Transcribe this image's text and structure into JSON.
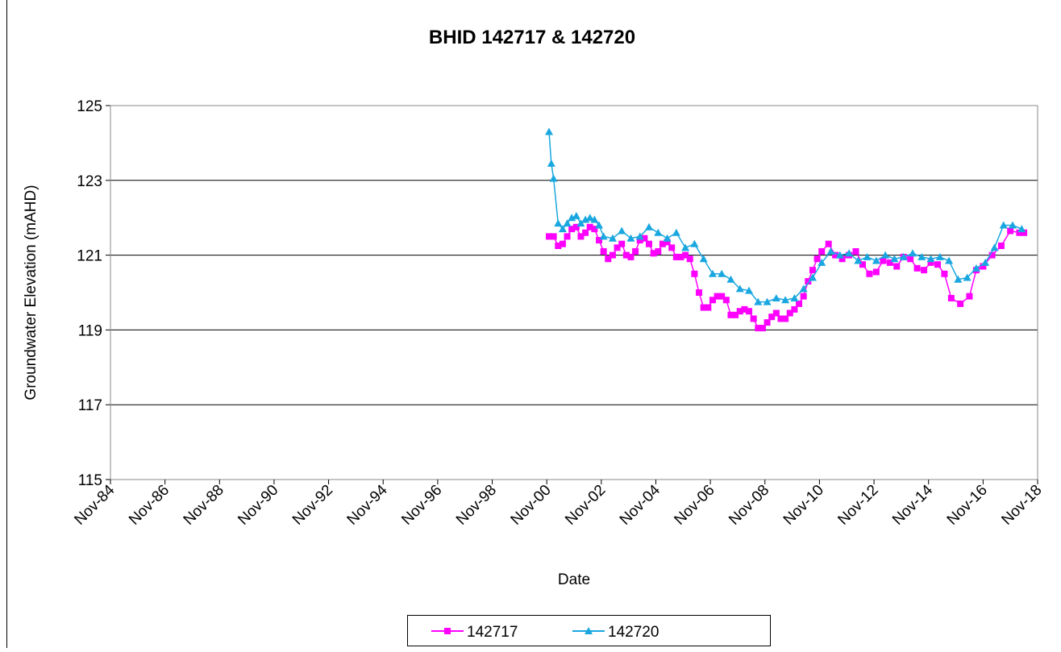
{
  "chart_data": {
    "type": "line",
    "title": "BHID 142717 & 142720",
    "xlabel": "Date",
    "ylabel": "Groundwater Elevation (mAHD)",
    "xlim": [
      "1984-11",
      "2018-11"
    ],
    "xticks": [
      {
        "value": "1984-11",
        "label": "Nov-84"
      },
      {
        "value": "1986-11",
        "label": "Nov-86"
      },
      {
        "value": "1988-11",
        "label": "Nov-88"
      },
      {
        "value": "1990-11",
        "label": "Nov-90"
      },
      {
        "value": "1992-11",
        "label": "Nov-92"
      },
      {
        "value": "1994-11",
        "label": "Nov-94"
      },
      {
        "value": "1996-11",
        "label": "Nov-96"
      },
      {
        "value": "1998-11",
        "label": "Nov-98"
      },
      {
        "value": "2000-11",
        "label": "Nov-00"
      },
      {
        "value": "2002-11",
        "label": "Nov-02"
      },
      {
        "value": "2004-11",
        "label": "Nov-04"
      },
      {
        "value": "2006-11",
        "label": "Nov-06"
      },
      {
        "value": "2008-11",
        "label": "Nov-08"
      },
      {
        "value": "2010-11",
        "label": "Nov-10"
      },
      {
        "value": "2012-11",
        "label": "Nov-12"
      },
      {
        "value": "2014-11",
        "label": "Nov-14"
      },
      {
        "value": "2016-11",
        "label": "Nov-16"
      },
      {
        "value": "2018-11",
        "label": "Nov-18"
      }
    ],
    "ylim": [
      115,
      125
    ],
    "yticks": [
      115,
      117,
      119,
      121,
      123,
      125
    ],
    "grid": true,
    "legend": "bottom",
    "series": [
      {
        "name": "142717",
        "color": "#ff00ff",
        "marker": "square",
        "x": [
          "2000-12",
          "2001-02",
          "2001-04",
          "2001-06",
          "2001-08",
          "2001-10",
          "2001-12",
          "2002-02",
          "2002-04",
          "2002-06",
          "2002-08",
          "2002-10",
          "2002-12",
          "2003-02",
          "2003-04",
          "2003-06",
          "2003-08",
          "2003-10",
          "2003-12",
          "2004-02",
          "2004-04",
          "2004-06",
          "2004-08",
          "2004-10",
          "2004-12",
          "2005-02",
          "2005-04",
          "2005-06",
          "2005-08",
          "2005-10",
          "2005-12",
          "2006-02",
          "2006-04",
          "2006-06",
          "2006-08",
          "2006-10",
          "2006-12",
          "2007-02",
          "2007-04",
          "2007-06",
          "2007-08",
          "2007-10",
          "2007-12",
          "2008-02",
          "2008-04",
          "2008-06",
          "2008-08",
          "2008-10",
          "2008-12",
          "2009-02",
          "2009-04",
          "2009-06",
          "2009-08",
          "2009-10",
          "2009-12",
          "2010-02",
          "2010-04",
          "2010-06",
          "2010-08",
          "2010-10",
          "2010-12",
          "2011-03",
          "2011-06",
          "2011-09",
          "2011-12",
          "2012-03",
          "2012-06",
          "2012-09",
          "2012-12",
          "2013-03",
          "2013-06",
          "2013-09",
          "2013-12",
          "2014-03",
          "2014-06",
          "2014-09",
          "2014-12",
          "2015-03",
          "2015-06",
          "2015-09",
          "2016-01",
          "2016-05",
          "2016-08",
          "2016-11",
          "2017-03",
          "2017-07",
          "2017-11",
          "2018-03",
          "2018-05"
        ],
        "values": [
          121.5,
          121.5,
          121.25,
          121.3,
          121.5,
          121.7,
          121.75,
          121.5,
          121.6,
          121.75,
          121.7,
          121.4,
          121.1,
          120.9,
          121.0,
          121.2,
          121.3,
          121.0,
          120.95,
          121.1,
          121.4,
          121.45,
          121.3,
          121.05,
          121.1,
          121.3,
          121.35,
          121.2,
          120.95,
          120.95,
          121.0,
          120.9,
          120.5,
          120.0,
          119.6,
          119.6,
          119.8,
          119.9,
          119.9,
          119.8,
          119.4,
          119.4,
          119.5,
          119.55,
          119.5,
          119.3,
          119.05,
          119.05,
          119.2,
          119.35,
          119.45,
          119.3,
          119.3,
          119.45,
          119.55,
          119.7,
          119.9,
          120.3,
          120.6,
          120.9,
          121.1,
          121.3,
          121.0,
          120.9,
          121.0,
          121.1,
          120.75,
          120.5,
          120.55,
          120.85,
          120.8,
          120.7,
          120.95,
          120.9,
          120.65,
          120.6,
          120.8,
          120.75,
          120.5,
          119.85,
          119.7,
          119.9,
          120.6,
          120.7,
          121.0,
          121.25,
          121.65,
          121.6,
          121.6
        ]
      },
      {
        "name": "142720",
        "color": "#1aa7e0",
        "marker": "triangle",
        "x": [
          "2000-12",
          "2001-01",
          "2001-02",
          "2001-04",
          "2001-06",
          "2001-08",
          "2001-10",
          "2001-12",
          "2002-02",
          "2002-04",
          "2002-06",
          "2002-08",
          "2002-10",
          "2002-12",
          "2003-04",
          "2003-08",
          "2003-12",
          "2004-04",
          "2004-08",
          "2004-12",
          "2005-04",
          "2005-08",
          "2005-12",
          "2006-04",
          "2006-08",
          "2006-12",
          "2007-04",
          "2007-08",
          "2007-12",
          "2008-04",
          "2008-08",
          "2008-12",
          "2009-04",
          "2009-08",
          "2009-12",
          "2010-04",
          "2010-08",
          "2010-12",
          "2011-04",
          "2011-08",
          "2011-12",
          "2012-04",
          "2012-08",
          "2012-12",
          "2013-04",
          "2013-08",
          "2013-12",
          "2014-04",
          "2014-08",
          "2014-12",
          "2015-04",
          "2015-08",
          "2015-12",
          "2016-04",
          "2016-08",
          "2016-12",
          "2017-04",
          "2017-08",
          "2017-12",
          "2018-04"
        ],
        "values": [
          124.3,
          123.45,
          123.05,
          121.85,
          121.7,
          121.85,
          122.0,
          122.05,
          121.85,
          121.95,
          122.0,
          121.95,
          121.8,
          121.5,
          121.45,
          121.65,
          121.45,
          121.5,
          121.75,
          121.6,
          121.45,
          121.6,
          121.2,
          121.3,
          120.9,
          120.5,
          120.5,
          120.35,
          120.1,
          120.05,
          119.75,
          119.75,
          119.85,
          119.8,
          119.85,
          120.1,
          120.4,
          120.8,
          121.1,
          121.0,
          121.05,
          120.85,
          120.95,
          120.85,
          121.0,
          120.9,
          120.95,
          121.05,
          120.95,
          120.9,
          120.95,
          120.85,
          120.35,
          120.4,
          120.65,
          120.8,
          121.2,
          121.8,
          121.8,
          121.7
        ]
      }
    ]
  }
}
